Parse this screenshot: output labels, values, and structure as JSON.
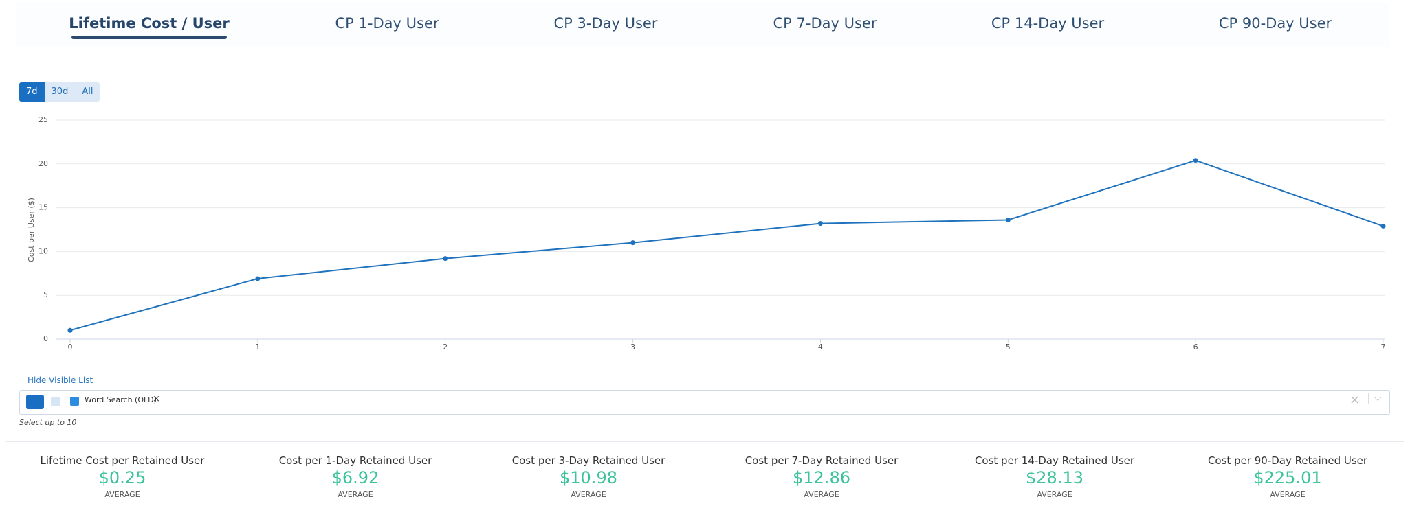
{
  "tabs": [
    "Lifetime Cost / User",
    "CP 1-Day User",
    "CP 3-Day User",
    "CP 7-Day User",
    "CP 14-Day User",
    "CP 90-Day User"
  ],
  "range_buttons": [
    "7d",
    "30d",
    "All"
  ],
  "chart_data": {
    "type": "line",
    "y_label": "Cost per User ($)",
    "x": [
      0,
      1,
      2,
      3,
      4,
      5,
      6,
      7
    ],
    "values": [
      1.0,
      6.9,
      9.2,
      11.0,
      13.2,
      13.6,
      20.4,
      12.9
    ],
    "color": "#1f72bd",
    "xlim": [
      0,
      7
    ],
    "xticks": [
      0,
      1,
      2,
      3,
      4,
      5,
      6,
      7
    ],
    "ylim": [
      0,
      25
    ],
    "yticks": [
      0,
      5,
      10,
      15,
      20,
      25
    ],
    "grid": true
  },
  "filter": {
    "toggle": "Hide Visible List",
    "chip": "Word Search (OLD)",
    "note": "Select up to 10"
  },
  "summary": [
    {
      "title": "Lifetime Cost per Retained User",
      "value": "$0.25",
      "label": "AVERAGE"
    },
    {
      "title": "Cost per 1-Day Retained User",
      "value": "$6.92",
      "label": "AVERAGE"
    },
    {
      "title": "Cost per 3-Day Retained User",
      "value": "$10.98",
      "label": "AVERAGE"
    },
    {
      "title": "Cost per 7-Day Retained User",
      "value": "$12.86",
      "label": "AVERAGE"
    },
    {
      "title": "Cost per 14-Day Retained User",
      "value": "$28.13",
      "label": "AVERAGE"
    },
    {
      "title": "Cost per 90-Day Retained User",
      "value": "$225.01",
      "label": "AVERAGE"
    }
  ]
}
